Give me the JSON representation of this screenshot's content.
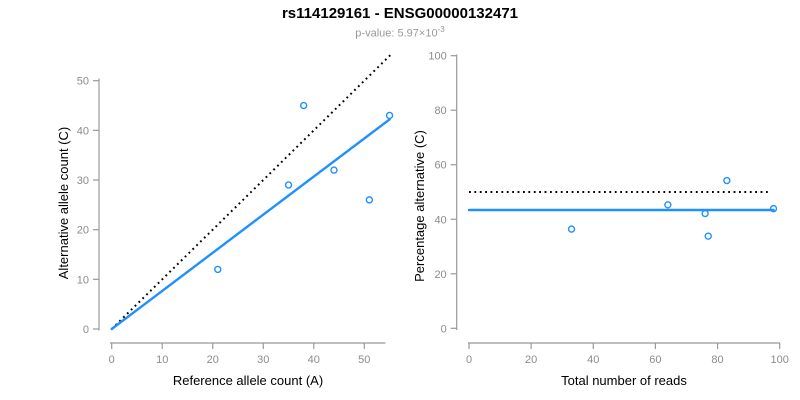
{
  "title": "rs114129161 - ENSG00000132471",
  "subtitle": {
    "prefix": "p-value: 5.97×10",
    "exponent": "-3"
  },
  "colors": {
    "accent": "#1E90FF",
    "axis_line": "#999999",
    "tick_text": "#8c8c8c",
    "label_text": "#000000",
    "identity_line": "#000000"
  },
  "chart_data": [
    {
      "type": "scatter",
      "panel": "allele-counts",
      "xlabel": "Reference allele count (A)",
      "ylabel": "Alternative allele count (C)",
      "xlim": [
        0,
        55
      ],
      "ylim": [
        0,
        55
      ],
      "xticks": [
        0,
        10,
        20,
        30,
        40,
        50
      ],
      "yticks": [
        0,
        10,
        20,
        30,
        40,
        50
      ],
      "grid": false,
      "points": [
        [
          21,
          12
        ],
        [
          35,
          29
        ],
        [
          38,
          45
        ],
        [
          44,
          32
        ],
        [
          51,
          26
        ],
        [
          55,
          43
        ]
      ],
      "lines": [
        {
          "name": "identity-line",
          "style": "dotted",
          "color": "#000000",
          "from": [
            0,
            0
          ],
          "to": [
            55.3,
            55.3
          ]
        },
        {
          "name": "regression-line",
          "style": "solid",
          "color": "#1E90FF",
          "from": [
            0,
            0
          ],
          "to": [
            55,
            42.2
          ]
        }
      ]
    },
    {
      "type": "scatter",
      "panel": "percentage-vs-coverage",
      "xlabel": "Total number of reads",
      "ylabel": "Percentage alternative (C)",
      "xlim": [
        0,
        100
      ],
      "ylim": [
        0,
        100
      ],
      "xticks": [
        0,
        20,
        40,
        60,
        80,
        100
      ],
      "yticks": [
        0,
        20,
        40,
        60,
        80,
        100
      ],
      "grid": false,
      "points": [
        [
          33,
          36.4
        ],
        [
          64,
          45.3
        ],
        [
          76,
          42.1
        ],
        [
          77,
          33.8
        ],
        [
          83,
          54.2
        ],
        [
          98,
          43.9
        ]
      ],
      "lines": [
        {
          "name": "expected-50pct-line",
          "style": "dotted",
          "color": "#000000",
          "from": [
            0,
            50
          ],
          "to": [
            96.5,
            50
          ]
        },
        {
          "name": "mean-percentage-line",
          "style": "solid",
          "color": "#1E90FF",
          "from": [
            0,
            43.4
          ],
          "to": [
            98,
            43.4
          ]
        }
      ]
    }
  ]
}
